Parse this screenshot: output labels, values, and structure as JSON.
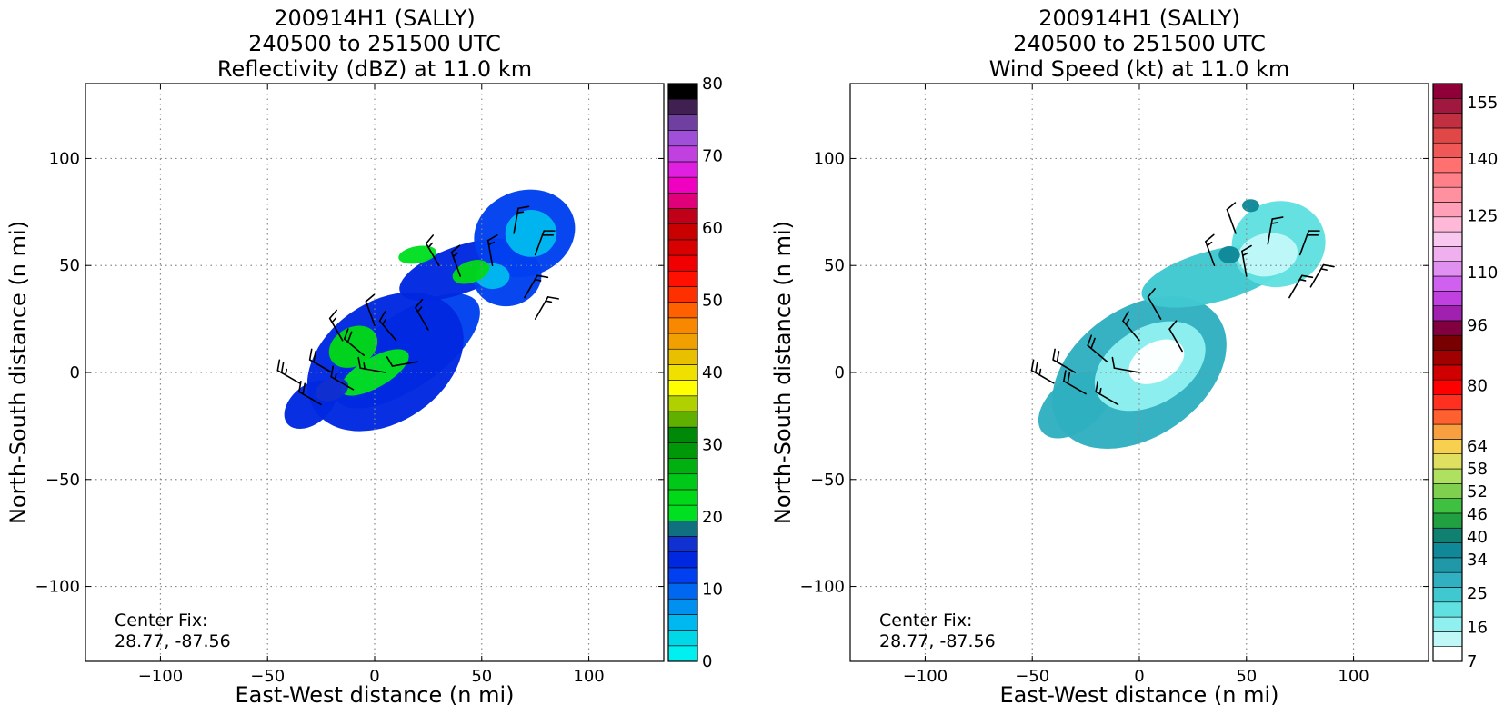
{
  "chart_data": [
    {
      "type": "heatmap",
      "title_lines": [
        "200914H1 (SALLY)",
        "240500 to 251500 UTC",
        "Reflectivity (dBZ) at 11.0 km"
      ],
      "xlabel": "East-West distance (n mi)",
      "ylabel": "North-South distance (n mi)",
      "xlim": [
        -135,
        135
      ],
      "ylim": [
        -135,
        135
      ],
      "xticks": [
        -100,
        -50,
        0,
        50,
        100
      ],
      "yticks": [
        -100,
        -50,
        0,
        50,
        100
      ],
      "xtick_labels": [
        "−100",
        "−50",
        "0",
        "50",
        "100"
      ],
      "ytick_labels": [
        "−100",
        "−50",
        "0",
        "50",
        "100"
      ],
      "grid": true,
      "center_fix_label": "Center Fix:",
      "center_fix_value": "28.77, -87.56",
      "colorbar": {
        "min": 0,
        "max": 80,
        "tick_values": [
          0,
          10,
          20,
          30,
          40,
          50,
          60,
          70,
          80
        ],
        "tick_labels": [
          "0",
          "10",
          "20",
          "30",
          "40",
          "50",
          "60",
          "70",
          "80"
        ],
        "colors": [
          "#00f0f0",
          "#00d8e8",
          "#00b8f0",
          "#0090f0",
          "#0068f0",
          "#0040f0",
          "#0028e0",
          "#1030d0",
          "#107080",
          "#00e020",
          "#00d818",
          "#00c818",
          "#00b010",
          "#009808",
          "#008808",
          "#60b000",
          "#b0d000",
          "#ffff00",
          "#f0e000",
          "#e8c000",
          "#f0a000",
          "#f88800",
          "#ff6000",
          "#ff3000",
          "#ff1000",
          "#f00000",
          "#d80000",
          "#c80000",
          "#c00018",
          "#e0007a",
          "#f000c0",
          "#e020e0",
          "#c040e0",
          "#a050d8",
          "#7040a0",
          "#402050",
          "#000000"
        ]
      },
      "blobs": [
        {
          "cx": 15,
          "cy": 10,
          "rx": 40,
          "ry": 17,
          "rot": 35,
          "value": 12
        },
        {
          "cx": 5,
          "cy": 5,
          "rx": 40,
          "ry": 28,
          "rot": 35,
          "value": 14
        },
        {
          "cx": -30,
          "cy": -15,
          "rx": 14,
          "ry": 9,
          "rot": 40,
          "value": 13
        },
        {
          "cx": 40,
          "cy": 48,
          "rx": 30,
          "ry": 11,
          "rot": 20,
          "value": 13
        },
        {
          "cx": 70,
          "cy": 65,
          "rx": 24,
          "ry": 20,
          "rot": 20,
          "value": 12
        },
        {
          "cx": 62,
          "cy": 45,
          "rx": 16,
          "ry": 14,
          "rot": 10,
          "value": 11
        },
        {
          "cx": 73,
          "cy": 65,
          "rx": 12,
          "ry": 11,
          "rot": 0,
          "value": 6
        },
        {
          "cx": 55,
          "cy": 45,
          "rx": 8,
          "ry": 6,
          "rot": 0,
          "value": 5
        },
        {
          "cx": -10,
          "cy": 12,
          "rx": 12,
          "ry": 9,
          "rot": 30,
          "value": 22
        },
        {
          "cx": 0,
          "cy": 0,
          "rx": 18,
          "ry": 7,
          "rot": 30,
          "value": 20
        },
        {
          "cx": 45,
          "cy": 47,
          "rx": 9,
          "ry": 5,
          "rot": 20,
          "value": 22
        },
        {
          "cx": 20,
          "cy": 55,
          "rx": 9,
          "ry": 4,
          "rot": 10,
          "value": 21
        },
        {
          "cx": -20,
          "cy": -8,
          "rx": 8,
          "ry": 5,
          "rot": 20,
          "value": 16
        }
      ],
      "barbs": [
        {
          "x": -35,
          "y": -5,
          "dir": 300,
          "spd": 25
        },
        {
          "x": -20,
          "y": 0,
          "dir": 300,
          "spd": 20
        },
        {
          "x": -5,
          "y": 8,
          "dir": 310,
          "spd": 20
        },
        {
          "x": 10,
          "y": 15,
          "dir": 320,
          "spd": 15
        },
        {
          "x": 25,
          "y": 20,
          "dir": 330,
          "spd": 15
        },
        {
          "x": -25,
          "y": -15,
          "dir": 300,
          "spd": 20
        },
        {
          "x": -10,
          "y": -8,
          "dir": 300,
          "spd": 15
        },
        {
          "x": 5,
          "y": 0,
          "dir": 280,
          "spd": 15
        },
        {
          "x": 20,
          "y": 5,
          "dir": 260,
          "spd": 10
        },
        {
          "x": -15,
          "y": 15,
          "dir": 330,
          "spd": 15
        },
        {
          "x": 0,
          "y": 22,
          "dir": 340,
          "spd": 10
        },
        {
          "x": 40,
          "y": 45,
          "dir": 340,
          "spd": 15
        },
        {
          "x": 55,
          "y": 50,
          "dir": 350,
          "spd": 15
        },
        {
          "x": 65,
          "y": 65,
          "dir": 10,
          "spd": 15
        },
        {
          "x": 75,
          "y": 55,
          "dir": 20,
          "spd": 20
        },
        {
          "x": 70,
          "y": 35,
          "dir": 30,
          "spd": 15
        },
        {
          "x": 30,
          "y": 50,
          "dir": 330,
          "spd": 15
        },
        {
          "x": 75,
          "y": 25,
          "dir": 30,
          "spd": 15
        }
      ]
    },
    {
      "type": "heatmap",
      "title_lines": [
        "200914H1 (SALLY)",
        "240500 to 251500 UTC",
        "Wind Speed (kt) at 11.0 km"
      ],
      "xlabel": "East-West distance (n mi)",
      "ylabel": "North-South distance (n mi)",
      "xlim": [
        -135,
        135
      ],
      "ylim": [
        -135,
        135
      ],
      "xticks": [
        -100,
        -50,
        0,
        50,
        100
      ],
      "yticks": [
        -100,
        -50,
        0,
        50,
        100
      ],
      "xtick_labels": [
        "−100",
        "−50",
        "0",
        "50",
        "100"
      ],
      "ytick_labels": [
        "−100",
        "−50",
        "0",
        "50",
        "100"
      ],
      "grid": true,
      "center_fix_label": "Center Fix:",
      "center_fix_value": "28.77, -87.56",
      "colorbar": {
        "min": 7,
        "max": 160,
        "tick_values": [
          7,
          16,
          25,
          34,
          40,
          46,
          52,
          58,
          64,
          80,
          96,
          110,
          125,
          140,
          155
        ],
        "tick_labels": [
          "7",
          "16",
          "25",
          "34",
          "40",
          "46",
          "52",
          "58",
          "64",
          "80",
          "96",
          "110",
          "125",
          "140",
          "155"
        ],
        "colors": [
          "#ffffff",
          "#c0f8f8",
          "#90f0f0",
          "#60e0e0",
          "#40c8d0",
          "#30b0c0",
          "#2098a8",
          "#108898",
          "#108070",
          "#20a040",
          "#40c040",
          "#80d050",
          "#b0e060",
          "#e0e060",
          "#f8d050",
          "#f8a040",
          "#ff6030",
          "#ff3020",
          "#ff0000",
          "#d00000",
          "#a00000",
          "#780000",
          "#800040",
          "#a020b0",
          "#c040e0",
          "#d060f0",
          "#e090f0",
          "#f0b0f0",
          "#f8c8f0",
          "#ffb8d8",
          "#ffa0b8",
          "#ff90a0",
          "#ff8088",
          "#ff7070",
          "#f05858",
          "#e04848",
          "#c03040",
          "#a01840",
          "#900038"
        ]
      },
      "blobs": [
        {
          "cx": 0,
          "cy": 0,
          "rx": 45,
          "ry": 30,
          "rot": 35,
          "value": 27
        },
        {
          "cx": -30,
          "cy": -15,
          "rx": 20,
          "ry": 12,
          "rot": 40,
          "value": 28
        },
        {
          "cx": 35,
          "cy": 45,
          "rx": 35,
          "ry": 12,
          "rot": 15,
          "value": 26
        },
        {
          "cx": 65,
          "cy": 60,
          "rx": 22,
          "ry": 20,
          "rot": 15,
          "value": 20
        },
        {
          "cx": 5,
          "cy": 3,
          "rx": 28,
          "ry": 18,
          "rot": 30,
          "value": 15
        },
        {
          "cx": 8,
          "cy": 5,
          "rx": 14,
          "ry": 9,
          "rot": 30,
          "value": 10
        },
        {
          "cx": 60,
          "cy": 55,
          "rx": 14,
          "ry": 10,
          "rot": 10,
          "value": 14
        },
        {
          "cx": 42,
          "cy": 55,
          "rx": 5,
          "ry": 4,
          "rot": 0,
          "value": 36
        },
        {
          "cx": 52,
          "cy": 78,
          "rx": 4,
          "ry": 3,
          "rot": 0,
          "value": 36
        }
      ],
      "barbs": [
        {
          "x": -40,
          "y": -5,
          "dir": 300,
          "spd": 25
        },
        {
          "x": -25,
          "y": -10,
          "dir": 300,
          "spd": 20
        },
        {
          "x": -15,
          "y": 5,
          "dir": 310,
          "spd": 20
        },
        {
          "x": 0,
          "y": 15,
          "dir": 320,
          "spd": 15
        },
        {
          "x": 20,
          "y": 10,
          "dir": 330,
          "spd": 10
        },
        {
          "x": -30,
          "y": 0,
          "dir": 300,
          "spd": 20
        },
        {
          "x": 0,
          "y": 0,
          "dir": 280,
          "spd": 10
        },
        {
          "x": 35,
          "y": 50,
          "dir": 340,
          "spd": 15
        },
        {
          "x": 50,
          "y": 45,
          "dir": 350,
          "spd": 15
        },
        {
          "x": 60,
          "y": 60,
          "dir": 10,
          "spd": 15
        },
        {
          "x": 75,
          "y": 55,
          "dir": 20,
          "spd": 20
        },
        {
          "x": 70,
          "y": 35,
          "dir": 30,
          "spd": 15
        },
        {
          "x": 45,
          "y": 65,
          "dir": 340,
          "spd": 10
        },
        {
          "x": 80,
          "y": 40,
          "dir": 30,
          "spd": 15
        },
        {
          "x": -10,
          "y": -15,
          "dir": 300,
          "spd": 15
        },
        {
          "x": 10,
          "y": 25,
          "dir": 330,
          "spd": 10
        }
      ]
    }
  ]
}
